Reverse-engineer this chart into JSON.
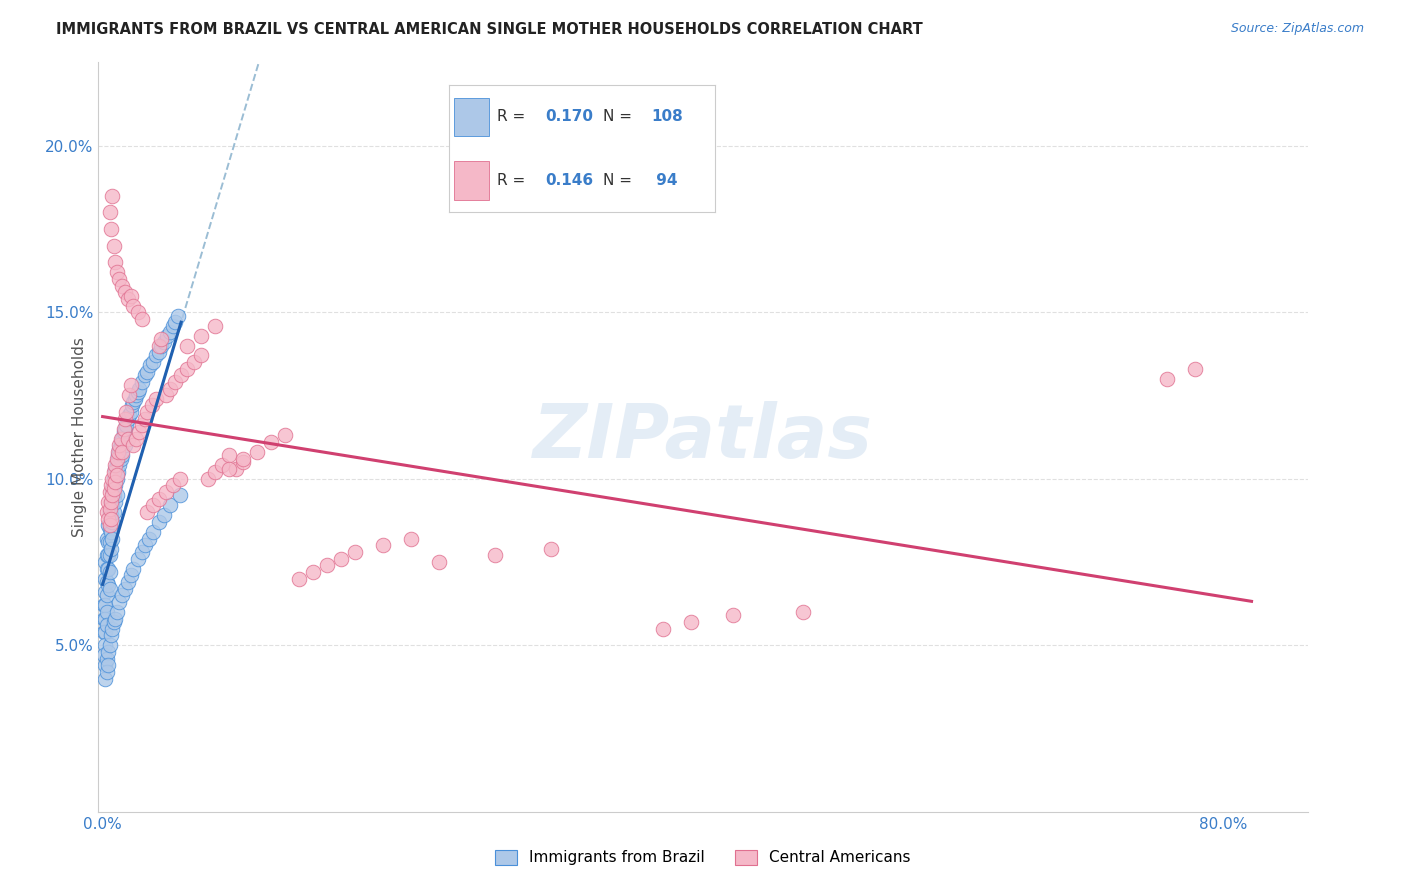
{
  "title": "IMMIGRANTS FROM BRAZIL VS CENTRAL AMERICAN SINGLE MOTHER HOUSEHOLDS CORRELATION CHART",
  "source": "Source: ZipAtlas.com",
  "ylabel": "Single Mother Households",
  "brazil_R": 0.17,
  "brazil_N": 108,
  "ca_R": 0.146,
  "ca_N": 94,
  "brazil_color": "#adc8e8",
  "brazil_edge_color": "#4a90d9",
  "brazil_line_color": "#2060b0",
  "ca_color": "#f5b8c8",
  "ca_edge_color": "#e07090",
  "ca_line_color": "#d04070",
  "dash_line_color": "#9bbdd4",
  "background_color": "#ffffff",
  "grid_color": "#e0e0e0",
  "title_color": "#222222",
  "tick_color": "#3a7dc9",
  "watermark": "ZIPatlas",
  "legend_label_brazil": "Immigrants from Brazil",
  "legend_label_ca": "Central Americans",
  "xlim_min": -0.003,
  "xlim_max": 0.86,
  "ylim_min": 0.0,
  "ylim_max": 0.225,
  "brazil_x": [
    0.001,
    0.001,
    0.001,
    0.002,
    0.002,
    0.002,
    0.002,
    0.002,
    0.002,
    0.002,
    0.003,
    0.003,
    0.003,
    0.003,
    0.003,
    0.003,
    0.003,
    0.004,
    0.004,
    0.004,
    0.004,
    0.004,
    0.005,
    0.005,
    0.005,
    0.005,
    0.005,
    0.005,
    0.006,
    0.006,
    0.006,
    0.006,
    0.007,
    0.007,
    0.007,
    0.007,
    0.008,
    0.008,
    0.008,
    0.009,
    0.009,
    0.009,
    0.01,
    0.01,
    0.01,
    0.011,
    0.011,
    0.012,
    0.012,
    0.013,
    0.013,
    0.014,
    0.014,
    0.015,
    0.016,
    0.016,
    0.017,
    0.018,
    0.019,
    0.02,
    0.021,
    0.022,
    0.023,
    0.024,
    0.025,
    0.026,
    0.028,
    0.03,
    0.032,
    0.034,
    0.036,
    0.038,
    0.04,
    0.042,
    0.044,
    0.046,
    0.048,
    0.05,
    0.052,
    0.054,
    0.001,
    0.002,
    0.002,
    0.003,
    0.003,
    0.004,
    0.004,
    0.005,
    0.006,
    0.007,
    0.008,
    0.009,
    0.01,
    0.012,
    0.014,
    0.016,
    0.018,
    0.02,
    0.022,
    0.025,
    0.028,
    0.03,
    0.033,
    0.036,
    0.04,
    0.044,
    0.048,
    0.055
  ],
  "brazil_y": [
    0.062,
    0.058,
    0.054,
    0.075,
    0.07,
    0.066,
    0.062,
    0.058,
    0.054,
    0.05,
    0.082,
    0.077,
    0.073,
    0.069,
    0.065,
    0.06,
    0.056,
    0.086,
    0.081,
    0.077,
    0.073,
    0.068,
    0.09,
    0.085,
    0.081,
    0.077,
    0.072,
    0.067,
    0.093,
    0.089,
    0.084,
    0.079,
    0.097,
    0.092,
    0.087,
    0.082,
    0.1,
    0.095,
    0.09,
    0.103,
    0.098,
    0.093,
    0.105,
    0.1,
    0.095,
    0.107,
    0.102,
    0.109,
    0.104,
    0.111,
    0.106,
    0.112,
    0.107,
    0.114,
    0.115,
    0.11,
    0.116,
    0.118,
    0.119,
    0.12,
    0.122,
    0.123,
    0.124,
    0.125,
    0.126,
    0.127,
    0.129,
    0.131,
    0.132,
    0.134,
    0.135,
    0.137,
    0.138,
    0.14,
    0.141,
    0.143,
    0.144,
    0.146,
    0.147,
    0.149,
    0.047,
    0.044,
    0.04,
    0.046,
    0.042,
    0.048,
    0.044,
    0.05,
    0.053,
    0.055,
    0.057,
    0.058,
    0.06,
    0.063,
    0.065,
    0.067,
    0.069,
    0.071,
    0.073,
    0.076,
    0.078,
    0.08,
    0.082,
    0.084,
    0.087,
    0.089,
    0.092,
    0.095
  ],
  "ca_x": [
    0.003,
    0.004,
    0.004,
    0.005,
    0.005,
    0.005,
    0.006,
    0.006,
    0.006,
    0.007,
    0.007,
    0.008,
    0.008,
    0.009,
    0.009,
    0.01,
    0.01,
    0.011,
    0.012,
    0.013,
    0.014,
    0.015,
    0.016,
    0.017,
    0.018,
    0.019,
    0.02,
    0.022,
    0.024,
    0.026,
    0.028,
    0.03,
    0.032,
    0.035,
    0.038,
    0.04,
    0.042,
    0.045,
    0.048,
    0.052,
    0.056,
    0.06,
    0.065,
    0.07,
    0.075,
    0.08,
    0.085,
    0.09,
    0.095,
    0.1,
    0.005,
    0.006,
    0.007,
    0.008,
    0.009,
    0.01,
    0.012,
    0.014,
    0.016,
    0.018,
    0.02,
    0.022,
    0.025,
    0.028,
    0.032,
    0.036,
    0.04,
    0.045,
    0.05,
    0.055,
    0.06,
    0.07,
    0.08,
    0.09,
    0.1,
    0.11,
    0.12,
    0.13,
    0.14,
    0.15,
    0.16,
    0.17,
    0.18,
    0.2,
    0.22,
    0.24,
    0.28,
    0.32,
    0.4,
    0.42,
    0.45,
    0.5,
    0.76,
    0.78
  ],
  "ca_y": [
    0.09,
    0.093,
    0.088,
    0.096,
    0.091,
    0.086,
    0.098,
    0.093,
    0.088,
    0.1,
    0.095,
    0.102,
    0.097,
    0.104,
    0.099,
    0.106,
    0.101,
    0.108,
    0.11,
    0.112,
    0.108,
    0.115,
    0.118,
    0.12,
    0.112,
    0.125,
    0.128,
    0.11,
    0.112,
    0.114,
    0.116,
    0.118,
    0.12,
    0.122,
    0.124,
    0.14,
    0.142,
    0.125,
    0.127,
    0.129,
    0.131,
    0.133,
    0.135,
    0.137,
    0.1,
    0.102,
    0.104,
    0.107,
    0.103,
    0.105,
    0.18,
    0.175,
    0.185,
    0.17,
    0.165,
    0.162,
    0.16,
    0.158,
    0.156,
    0.154,
    0.155,
    0.152,
    0.15,
    0.148,
    0.09,
    0.092,
    0.094,
    0.096,
    0.098,
    0.1,
    0.14,
    0.143,
    0.146,
    0.103,
    0.106,
    0.108,
    0.111,
    0.113,
    0.07,
    0.072,
    0.074,
    0.076,
    0.078,
    0.08,
    0.082,
    0.075,
    0.077,
    0.079,
    0.055,
    0.057,
    0.059,
    0.06,
    0.13,
    0.133
  ]
}
